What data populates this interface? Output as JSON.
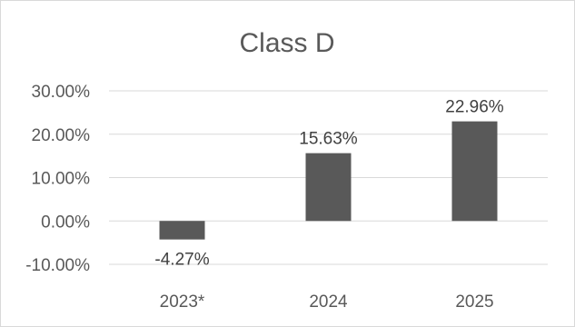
{
  "chart_data": {
    "type": "bar",
    "title": "Class D",
    "categories": [
      "2023*",
      "2024",
      "2025"
    ],
    "values": [
      -4.27,
      15.63,
      22.96
    ],
    "data_labels": [
      "-4.27%",
      "15.63%",
      "22.96%"
    ],
    "xlabel": "",
    "ylabel": "",
    "ylim": [
      -10,
      30
    ],
    "y_ticks": [
      30,
      20,
      10,
      0,
      -10
    ],
    "y_tick_labels": [
      "30.00%",
      "20.00%",
      "10.00%",
      "0.00%",
      "-10.00%"
    ],
    "grid": true,
    "legend": "none",
    "colors": {
      "bar": "#595959",
      "grid": "#d9d9d9",
      "text": "#595959",
      "border": "#d9d9d9"
    }
  }
}
